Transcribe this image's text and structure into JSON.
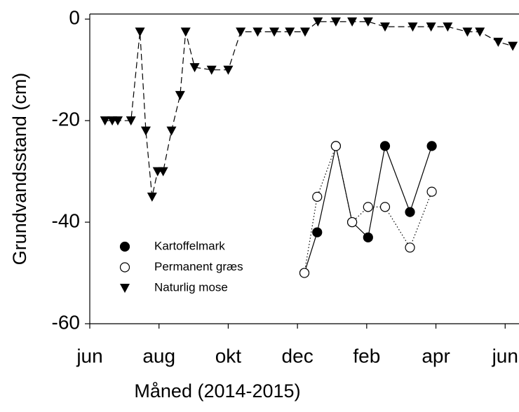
{
  "chart_data": {
    "type": "line",
    "xlabel": "Måned (2014-2015)",
    "ylabel": "Grundvandsstand (cm)",
    "xlim": [
      0,
      12.4
    ],
    "ylim": [
      -60,
      1
    ],
    "xticks": [
      {
        "value": 0,
        "label": "jun"
      },
      {
        "value": 2,
        "label": "aug"
      },
      {
        "value": 4,
        "label": "okt"
      },
      {
        "value": 6,
        "label": "dec"
      },
      {
        "value": 8,
        "label": "feb"
      },
      {
        "value": 10,
        "label": "apr"
      },
      {
        "value": 12,
        "label": "jun"
      }
    ],
    "yticks": [
      0,
      -20,
      -40,
      -60
    ],
    "legend": "lower left",
    "series": [
      {
        "name": "Kartoffelmark",
        "color": "#000000",
        "marker": "circle",
        "line_style": "solid",
        "x": [
          6.2,
          6.57,
          7.11,
          7.58,
          8.04,
          8.53,
          9.25,
          9.88
        ],
        "values": [
          -50,
          -42,
          -25,
          -40,
          -43,
          -25,
          -38,
          -25
        ]
      },
      {
        "name": "Permanent græs",
        "color": "#000000",
        "marker": "open-circle",
        "line_style": "dotted",
        "x": [
          6.2,
          6.57,
          7.11,
          7.58,
          8.04,
          8.53,
          9.25,
          9.88
        ],
        "values": [
          -50,
          -35,
          -25,
          -40,
          -37,
          -37,
          -45,
          -34
        ]
      },
      {
        "name": "Naturlig mose",
        "color": "#000000",
        "marker": "triangle-down",
        "line_style": "dashed",
        "x": [
          0.44,
          0.65,
          0.81,
          1.19,
          1.45,
          1.62,
          1.8,
          1.96,
          2.12,
          2.36,
          2.61,
          2.77,
          3.03,
          3.52,
          4.0,
          4.36,
          4.85,
          5.33,
          5.78,
          6.22,
          6.59,
          7.11,
          7.58,
          8.04,
          8.53,
          9.33,
          9.86,
          10.34,
          10.91,
          11.27,
          11.8,
          12.22
        ],
        "values": [
          -20,
          -20,
          -20,
          -20,
          -2.5,
          -22,
          -35,
          -30,
          -30,
          -22,
          -15,
          -2.5,
          -9.5,
          -10,
          -10,
          -2.5,
          -2.5,
          -2.5,
          -2.5,
          -2.5,
          -0.5,
          -0.5,
          -0.5,
          -0.5,
          -1.5,
          -1.5,
          -1.5,
          -1.5,
          -2.5,
          -2.5,
          -4.5,
          -5.3
        ]
      }
    ]
  }
}
